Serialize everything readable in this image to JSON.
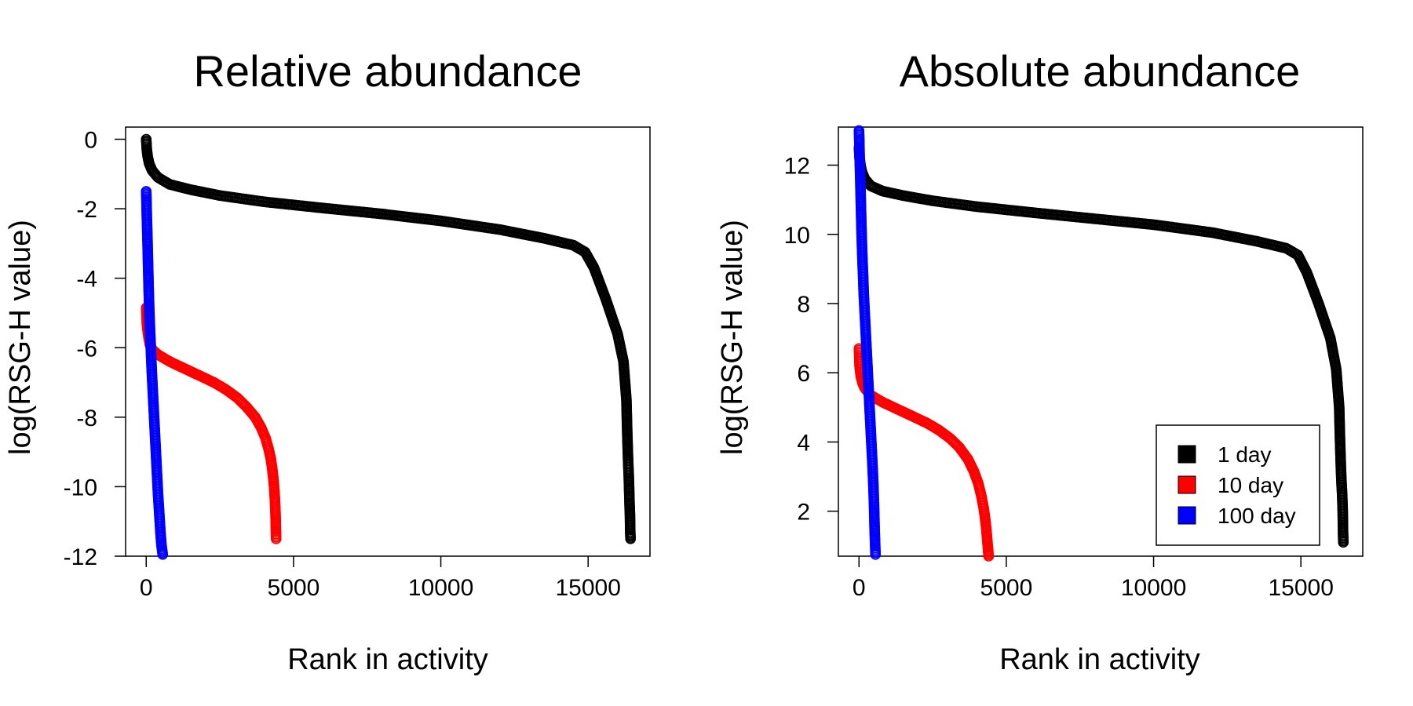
{
  "chart_data": [
    {
      "type": "scatter",
      "title": "Relative abundance",
      "xlabel": "Rank in activity",
      "ylabel": "log(RSG-H value)",
      "xlim": [
        -700,
        17100
      ],
      "ylim": [
        -12,
        0.35
      ],
      "xticks": [
        0,
        5000,
        10000,
        15000
      ],
      "xtick_labels": [
        "0",
        "5000",
        "10000",
        "15000"
      ],
      "yticks": [
        0,
        -2,
        -4,
        -6,
        -8,
        -10,
        -12
      ],
      "ytick_labels": [
        "0",
        "-2",
        "-4",
        "-6",
        "-8",
        "-10",
        "-12"
      ],
      "series": [
        {
          "name": "1 day",
          "color": "#000000",
          "points": [
            [
              0,
              0
            ],
            [
              20,
              -0.3
            ],
            [
              50,
              -0.5
            ],
            [
              100,
              -0.7
            ],
            [
              200,
              -0.9
            ],
            [
              400,
              -1.1
            ],
            [
              800,
              -1.3
            ],
            [
              1500,
              -1.45
            ],
            [
              2500,
              -1.62
            ],
            [
              4000,
              -1.8
            ],
            [
              6000,
              -1.98
            ],
            [
              8000,
              -2.15
            ],
            [
              10000,
              -2.35
            ],
            [
              12000,
              -2.6
            ],
            [
              13500,
              -2.85
            ],
            [
              14500,
              -3.05
            ],
            [
              14900,
              -3.25
            ],
            [
              15200,
              -3.7
            ],
            [
              15600,
              -4.6
            ],
            [
              16000,
              -5.6
            ],
            [
              16200,
              -6.4
            ],
            [
              16300,
              -7.5
            ],
            [
              16330,
              -8.5
            ],
            [
              16360,
              -9.3
            ],
            [
              16380,
              -9.7
            ],
            [
              16390,
              -10.0
            ],
            [
              16400,
              -10.3
            ],
            [
              16410,
              -10.6
            ],
            [
              16420,
              -10.8
            ],
            [
              16430,
              -11.3
            ],
            [
              16440,
              -11.5
            ]
          ]
        },
        {
          "name": "10 day",
          "color": "#ff0000",
          "points": [
            [
              0,
              -4.85
            ],
            [
              20,
              -5.3
            ],
            [
              60,
              -5.6
            ],
            [
              120,
              -5.9
            ],
            [
              200,
              -6.05
            ],
            [
              400,
              -6.2
            ],
            [
              800,
              -6.4
            ],
            [
              1300,
              -6.6
            ],
            [
              1800,
              -6.8
            ],
            [
              2300,
              -7.0
            ],
            [
              2700,
              -7.2
            ],
            [
              3100,
              -7.45
            ],
            [
              3400,
              -7.7
            ],
            [
              3700,
              -8.0
            ],
            [
              3900,
              -8.3
            ],
            [
              4050,
              -8.6
            ],
            [
              4150,
              -8.9
            ],
            [
              4230,
              -9.2
            ],
            [
              4280,
              -9.5
            ],
            [
              4320,
              -9.8
            ],
            [
              4350,
              -10.1
            ],
            [
              4370,
              -10.4
            ],
            [
              4390,
              -10.8
            ],
            [
              4410,
              -11.5
            ]
          ]
        },
        {
          "name": "100 day",
          "color": "#0000ff",
          "points": [
            [
              0,
              -1.5
            ],
            [
              10,
              -1.8
            ],
            [
              20,
              -2.2
            ],
            [
              40,
              -2.8
            ],
            [
              60,
              -3.5
            ],
            [
              80,
              -4.2
            ],
            [
              100,
              -4.8
            ],
            [
              120,
              -5.3
            ],
            [
              140,
              -5.7
            ],
            [
              160,
              -6.1
            ],
            [
              190,
              -6.7
            ],
            [
              220,
              -7.2
            ],
            [
              250,
              -7.7
            ],
            [
              280,
              -8.2
            ],
            [
              310,
              -8.7
            ],
            [
              340,
              -9.2
            ],
            [
              370,
              -9.7
            ],
            [
              400,
              -10.2
            ],
            [
              430,
              -10.6
            ],
            [
              460,
              -11.0
            ],
            [
              490,
              -11.4
            ],
            [
              520,
              -11.7
            ],
            [
              560,
              -11.95
            ]
          ]
        }
      ]
    },
    {
      "type": "scatter",
      "title": "Absolute abundance",
      "xlabel": "Rank in activity",
      "ylabel": "log(RSG-H value)",
      "xlim": [
        -700,
        17100
      ],
      "ylim": [
        0.7,
        13.1
      ],
      "xticks": [
        0,
        5000,
        10000,
        15000
      ],
      "xtick_labels": [
        "0",
        "5000",
        "10000",
        "15000"
      ],
      "yticks": [
        2,
        4,
        6,
        8,
        10,
        12
      ],
      "ytick_labels": [
        "2",
        "4",
        "6",
        "8",
        "10",
        "12"
      ],
      "series": [
        {
          "name": "1 day",
          "color": "#000000",
          "points": [
            [
              0,
              12.5
            ],
            [
              20,
              12.2
            ],
            [
              50,
              12.0
            ],
            [
              100,
              11.8
            ],
            [
              200,
              11.6
            ],
            [
              400,
              11.4
            ],
            [
              800,
              11.25
            ],
            [
              1500,
              11.12
            ],
            [
              2500,
              10.97
            ],
            [
              4000,
              10.8
            ],
            [
              6000,
              10.62
            ],
            [
              8000,
              10.45
            ],
            [
              10000,
              10.28
            ],
            [
              12000,
              10.05
            ],
            [
              13500,
              9.8
            ],
            [
              14500,
              9.6
            ],
            [
              14900,
              9.4
            ],
            [
              15200,
              8.9
            ],
            [
              15600,
              8.0
            ],
            [
              16000,
              7.0
            ],
            [
              16200,
              6.1
            ],
            [
              16300,
              5.0
            ],
            [
              16330,
              4.0
            ],
            [
              16360,
              3.2
            ],
            [
              16380,
              2.8
            ],
            [
              16400,
              2.5
            ],
            [
              16420,
              2.0
            ],
            [
              16430,
              1.4
            ],
            [
              16440,
              1.1
            ]
          ]
        },
        {
          "name": "10 day",
          "color": "#ff0000",
          "points": [
            [
              0,
              6.7
            ],
            [
              20,
              6.2
            ],
            [
              60,
              5.9
            ],
            [
              120,
              5.7
            ],
            [
              200,
              5.55
            ],
            [
              400,
              5.35
            ],
            [
              800,
              5.15
            ],
            [
              1300,
              4.95
            ],
            [
              1800,
              4.75
            ],
            [
              2300,
              4.55
            ],
            [
              2700,
              4.35
            ],
            [
              3100,
              4.1
            ],
            [
              3400,
              3.85
            ],
            [
              3700,
              3.5
            ],
            [
              3900,
              3.15
            ],
            [
              4050,
              2.8
            ],
            [
              4150,
              2.45
            ],
            [
              4230,
              2.1
            ],
            [
              4280,
              1.8
            ],
            [
              4320,
              1.5
            ],
            [
              4350,
              1.2
            ],
            [
              4380,
              0.9
            ],
            [
              4400,
              0.7
            ]
          ]
        },
        {
          "name": "100 day",
          "color": "#0000ff",
          "points": [
            [
              0,
              13.0
            ],
            [
              10,
              12.7
            ],
            [
              20,
              12.3
            ],
            [
              40,
              11.7
            ],
            [
              60,
              11.0
            ],
            [
              80,
              10.3
            ],
            [
              100,
              9.7
            ],
            [
              120,
              9.2
            ],
            [
              140,
              8.8
            ],
            [
              160,
              8.3
            ],
            [
              190,
              7.8
            ],
            [
              220,
              7.3
            ],
            [
              250,
              6.8
            ],
            [
              280,
              6.3
            ],
            [
              310,
              5.8
            ],
            [
              340,
              5.3
            ],
            [
              370,
              4.8
            ],
            [
              400,
              4.3
            ],
            [
              430,
              3.8
            ],
            [
              460,
              3.3
            ],
            [
              490,
              2.7
            ],
            [
              510,
              2.2
            ],
            [
              530,
              1.5
            ],
            [
              560,
              0.75
            ]
          ]
        }
      ],
      "legend": {
        "position": "bottom-right",
        "entries": [
          "1 day",
          "10 day",
          "100 day"
        ]
      }
    }
  ]
}
